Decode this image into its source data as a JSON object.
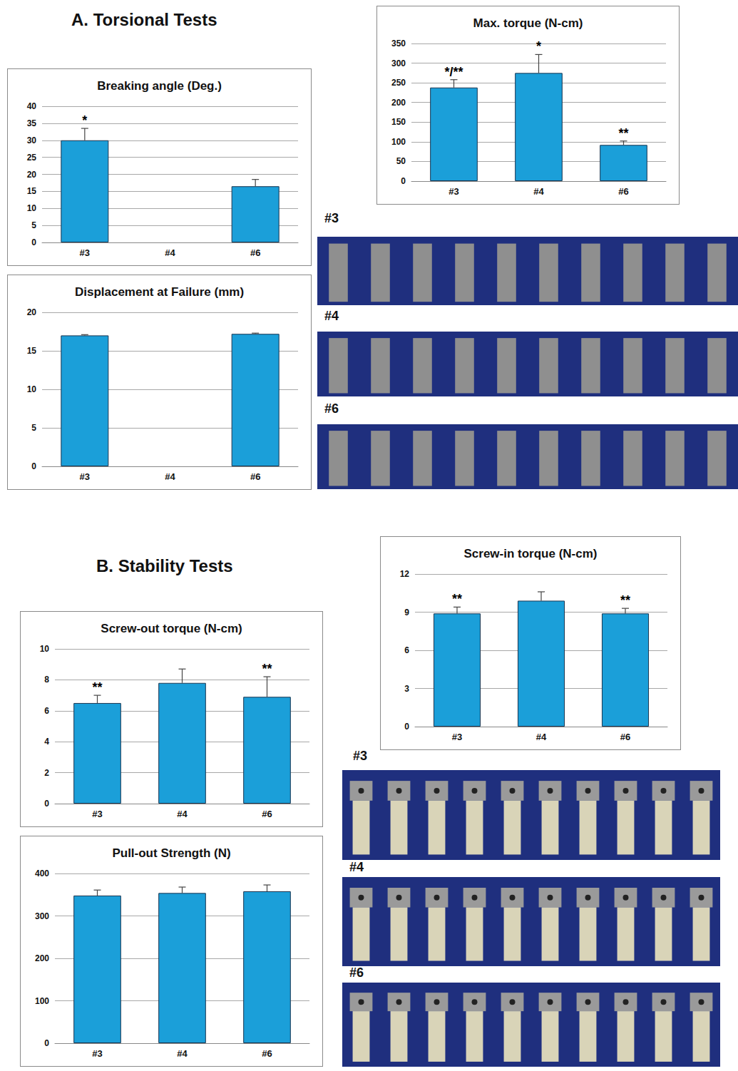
{
  "sections": [
    "A. Torsional Tests",
    "B. Stability Tests"
  ],
  "photos": {
    "A": [
      "#3",
      "#4",
      "#6"
    ],
    "B": [
      "#3",
      "#4",
      "#6"
    ]
  },
  "chart_data": [
    {
      "type": "bar",
      "title": "Breaking angle (Deg.)",
      "categories": [
        "#3",
        "#4",
        "#6"
      ],
      "values": [
        30,
        null,
        16.5
      ],
      "errors": [
        3.5,
        null,
        2
      ],
      "annotations": [
        "*",
        null,
        null
      ],
      "color": "#1b9fd9",
      "ylim": [
        0,
        40
      ],
      "yticks": [
        0,
        5,
        10,
        15,
        20,
        25,
        30,
        35,
        40
      ],
      "grid": true
    },
    {
      "type": "bar",
      "title": "Displacement at Failure (mm)",
      "categories": [
        "#3",
        "#4",
        "#6"
      ],
      "values": [
        17.0,
        null,
        17.2
      ],
      "errors": [
        0.1,
        null,
        0.1
      ],
      "annotations": [
        null,
        null,
        null
      ],
      "color": "#1b9fd9",
      "ylim": [
        0,
        20
      ],
      "yticks": [
        0,
        5,
        10,
        15,
        20
      ],
      "grid": true
    },
    {
      "type": "bar",
      "title": "Max. torque (N-cm)",
      "categories": [
        "#3",
        "#4",
        "#6"
      ],
      "values": [
        238,
        275,
        92
      ],
      "errors": [
        20,
        47,
        10
      ],
      "annotations": [
        "*/**",
        "*",
        "**"
      ],
      "color": "#1b9fd9",
      "ylim": [
        0,
        350
      ],
      "yticks": [
        0,
        50,
        100,
        150,
        200,
        250,
        300,
        350
      ],
      "grid": true
    },
    {
      "type": "bar",
      "title": "Screw-out torque (N-cm)",
      "categories": [
        "#3",
        "#4",
        "#6"
      ],
      "values": [
        6.5,
        7.8,
        6.9
      ],
      "errors": [
        0.5,
        0.9,
        1.3
      ],
      "annotations": [
        "**",
        null,
        "**"
      ],
      "color": "#1b9fd9",
      "ylim": [
        0,
        10
      ],
      "yticks": [
        0,
        2,
        4,
        6,
        8,
        10
      ],
      "grid": true
    },
    {
      "type": "bar",
      "title": "Pull-out Strength (N)",
      "categories": [
        "#3",
        "#4",
        "#6"
      ],
      "values": [
        348,
        354,
        358
      ],
      "errors": [
        13,
        14,
        15
      ],
      "annotations": [
        null,
        null,
        null
      ],
      "color": "#1b9fd9",
      "ylim": [
        0,
        400
      ],
      "yticks": [
        0,
        100,
        200,
        300,
        400
      ],
      "grid": true
    },
    {
      "type": "bar",
      "title": "Screw-in torque (N-cm)",
      "categories": [
        "#3",
        "#4",
        "#6"
      ],
      "values": [
        8.9,
        9.9,
        8.9
      ],
      "errors": [
        0.5,
        0.7,
        0.4
      ],
      "annotations": [
        "**",
        null,
        "**"
      ],
      "color": "#1b9fd9",
      "ylim": [
        0,
        12
      ],
      "yticks": [
        0,
        3,
        6,
        9,
        12
      ],
      "grid": true
    }
  ]
}
